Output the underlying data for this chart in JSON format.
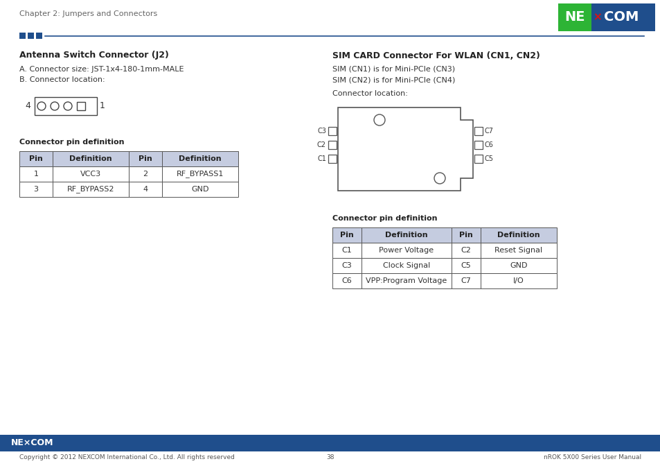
{
  "page_title": "Chapter 2: Jumpers and Connectors",
  "header_line_color": "#1F4E8C",
  "header_sq_color": "#1F4E8C",
  "left_section_title": "Antenna Switch Connector (J2)",
  "left_text_a": "A. Connector size: JST-1x4-180-1mm-MALE",
  "left_text_b": "B. Connector location:",
  "left_table_title": "Connector pin definition",
  "left_table_headers": [
    "Pin",
    "Definition",
    "Pin",
    "Definition"
  ],
  "left_table_rows": [
    [
      "1",
      "VCC3",
      "2",
      "RF_BYPASS1"
    ],
    [
      "3",
      "RF_BYPASS2",
      "4",
      "GND"
    ]
  ],
  "right_section_title": "SIM CARD Connector For WLAN (CN1, CN2)",
  "right_text1": "SIM (CN1) is for Mini-PCIe (CN3)",
  "right_text2": "SIM (CN2) is for Mini-PCIe (CN4)",
  "right_text3": "Connector location:",
  "right_table_title": "Connector pin definition",
  "right_table_headers": [
    "Pin",
    "Definition",
    "Pin",
    "Definition"
  ],
  "right_table_rows": [
    [
      "C1",
      "Power Voltage",
      "C2",
      "Reset Signal"
    ],
    [
      "C3",
      "Clock Signal",
      "C5",
      "GND"
    ],
    [
      "C6",
      "VPP:Program Voltage",
      "C7",
      "I/O"
    ]
  ],
  "footer_bar_color": "#1F4E8C",
  "footer_text_left": "Copyright © 2012 NEXCOM International Co., Ltd. All rights reserved",
  "footer_text_center": "38",
  "footer_text_right": "nROK 5X00 Series User Manual",
  "bg_color": "#FFFFFF",
  "text_color": "#333333",
  "table_header_bg": "#C5CCE0",
  "table_border_color": "#555555",
  "logo_green": "#2DB435",
  "logo_blue": "#1F4E8C"
}
